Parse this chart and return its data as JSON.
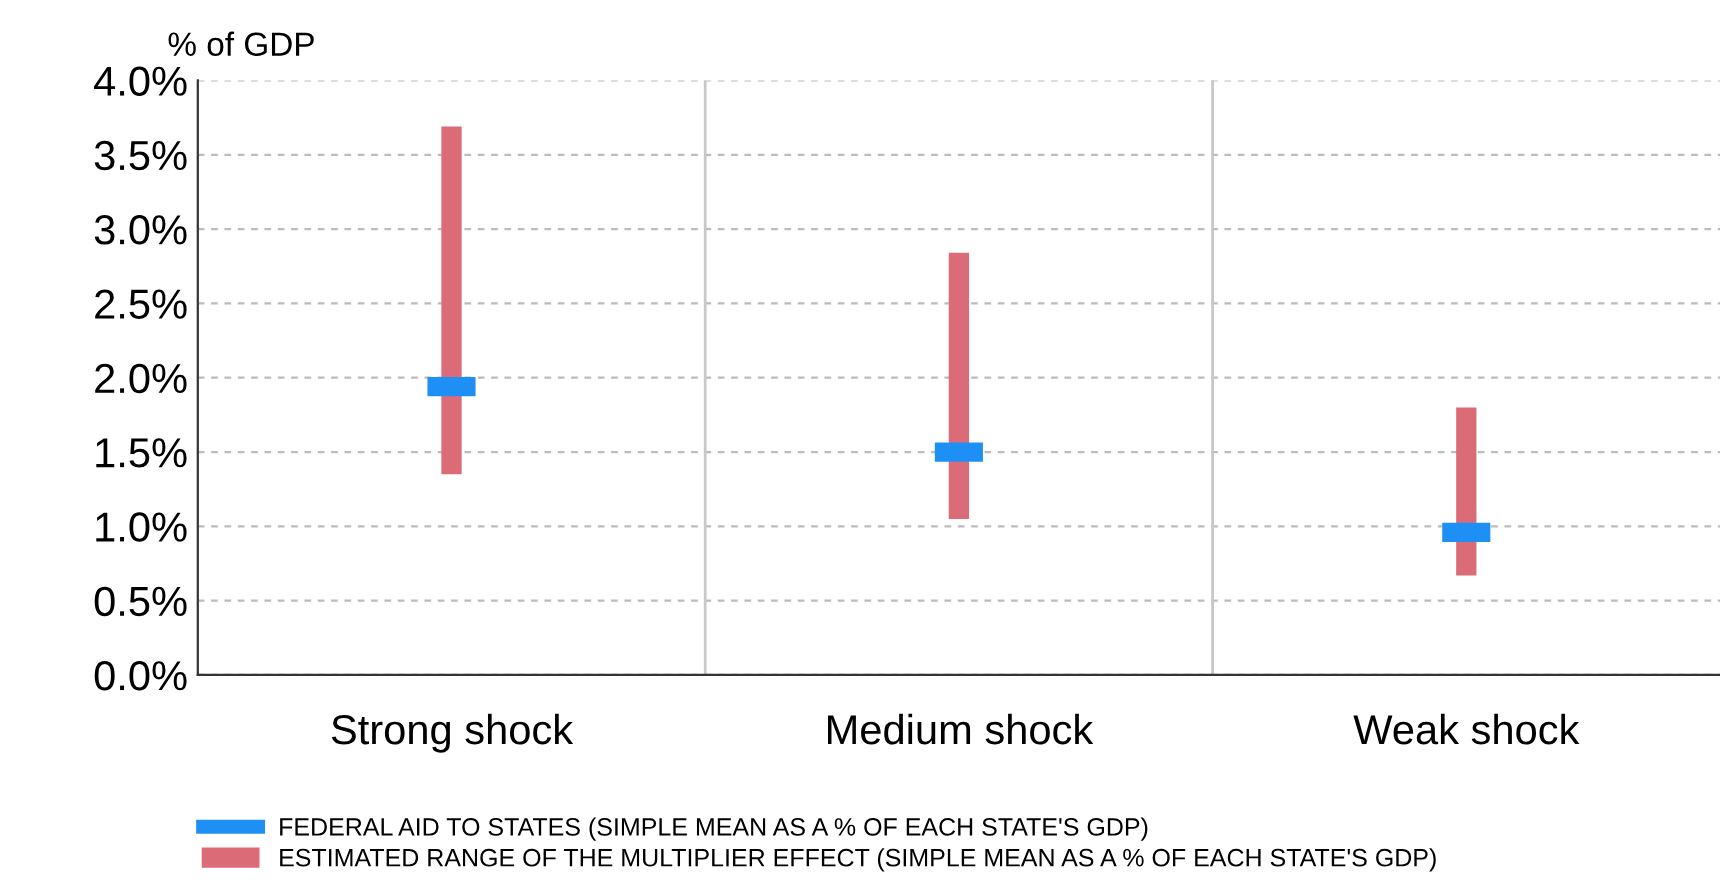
{
  "chart_data": {
    "type": "bar",
    "ylabel": "% of GDP",
    "categories": [
      "Strong shock",
      "Medium shock",
      "Weak shock"
    ],
    "series": [
      {
        "name": "ESTIMATED RANGE OF THE MULTIPLIER EFFECT (SIMPLE MEAN AS A % OF EACH STATE'S GDP)",
        "color": "#dc6b78",
        "base": [
          1.35,
          1.05,
          0.67
        ],
        "values": [
          2.34,
          1.79,
          1.13
        ]
      },
      {
        "name": "FEDERAL AID TO STATES (SIMPLE MEAN AS A % OF EACH STATE'S GDP)",
        "type": "scatter",
        "color": "#1e8ff5",
        "x": [
          "Strong shock",
          "Medium shock",
          "Weak shock"
        ],
        "values": [
          1.94,
          1.5,
          0.96
        ]
      }
    ],
    "ylim": [
      0,
      4
    ],
    "yticks": [
      {
        "value": 0,
        "label": "0.0%"
      },
      {
        "value": 0.5,
        "label": "0.5%"
      },
      {
        "value": 1,
        "label": "1.0%"
      },
      {
        "value": 1.5,
        "label": "1.5%"
      },
      {
        "value": 2,
        "label": "2.0%"
      },
      {
        "value": 2.5,
        "label": "2.5%"
      },
      {
        "value": 3,
        "label": "3.0%"
      },
      {
        "value": 3.5,
        "label": "3.5%"
      },
      {
        "value": 4,
        "label": "4.0%"
      }
    ],
    "grid": true,
    "legend": "bottom left"
  }
}
